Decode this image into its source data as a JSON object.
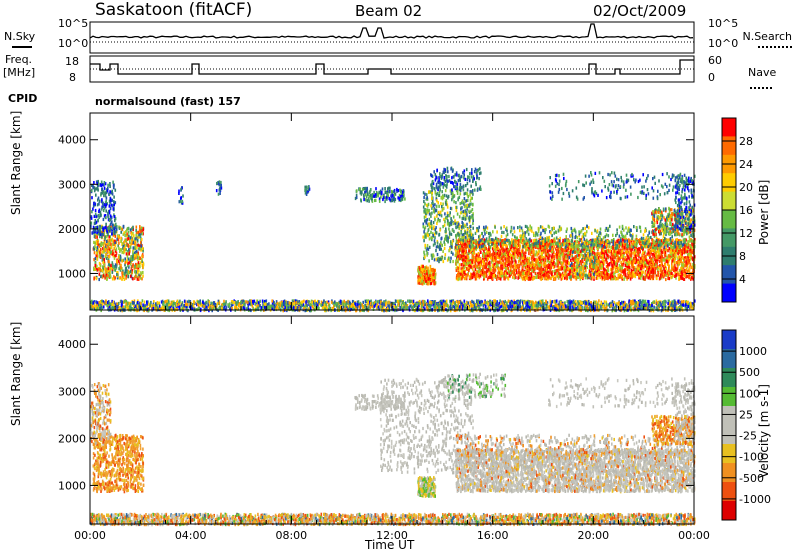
{
  "header": {
    "station": "Saskatoon (fitACF)",
    "beam": "Beam 02",
    "date": "02/Oct/2009"
  },
  "top_panels": {
    "nsky_label": "N.Sky",
    "nsearch_label": "N.Search",
    "noise_ticks_left": [
      "10^5",
      "10^0"
    ],
    "noise_ticks_right": [
      "10^5",
      "10^0"
    ],
    "freq_label_1": "Freq.",
    "freq_label_2": "[MHz]",
    "freq_ticks": [
      "18",
      "8"
    ],
    "nave_label": "Nave",
    "nave_ticks": [
      "60",
      "0"
    ],
    "cpid_label": "CPID",
    "cpid_value": "normalsound (fast) 157"
  },
  "colorbars": {
    "power": {
      "label": "Power [dB]",
      "ticks": [
        "28",
        "24",
        "20",
        "16",
        "12",
        "8",
        "4"
      ],
      "colors": [
        "#ff0000",
        "#ff6a00",
        "#ff9a00",
        "#ffcc00",
        "#ccdd33",
        "#66bb44",
        "#449966",
        "#2e7d6e",
        "#2255aa",
        "#0000ff"
      ]
    },
    "velocity": {
      "label": "Velocity [m s-1]",
      "ticks": [
        "1000",
        "500",
        "100",
        "25",
        "-25",
        "-100",
        "-500",
        "-1000"
      ],
      "colors": [
        "#1a3cc8",
        "#2a6aa0",
        "#2e8a5a",
        "#55bb33",
        "#c0c0b8",
        "#c0c0b8",
        "#e8c020",
        "#f09020",
        "#ee5010",
        "#dd0000"
      ]
    }
  },
  "chart_data": [
    {
      "type": "heatmap",
      "name_text": "Power",
      "xlabel": "Time UT",
      "ylabel": "Slant Range [km]",
      "x_ticks": [
        "00:00",
        "04:00",
        "08:00",
        "12:00",
        "16:00",
        "20:00",
        "00:00"
      ],
      "y_ticks": [
        "1000",
        "2000",
        "3000",
        "4000"
      ],
      "x_range_hours": [
        0,
        24
      ],
      "ylim": [
        180,
        4600
      ]
    },
    {
      "type": "heatmap",
      "name_text": "Velocity",
      "xlabel": "Time UT",
      "ylabel": "Slant Range [km]",
      "x_ticks": [
        "00:00",
        "04:00",
        "08:00",
        "12:00",
        "16:00",
        "20:00",
        "00:00"
      ],
      "y_ticks": [
        "1000",
        "2000",
        "3000",
        "4000"
      ],
      "x_range_hours": [
        0,
        24
      ],
      "ylim": [
        180,
        4600
      ]
    }
  ]
}
